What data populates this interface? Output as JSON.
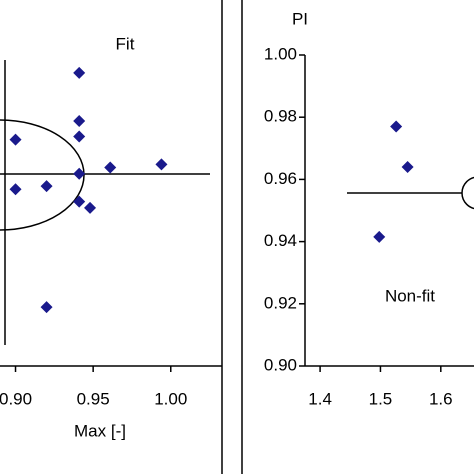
{
  "chart_data": [
    {
      "type": "scatter",
      "xlabel": "Max [-]",
      "annotation": "Fit",
      "color": "#1a1a8c",
      "x": [
        0.941,
        0.941,
        0.941,
        0.9,
        0.961,
        0.994,
        0.941,
        0.9,
        0.92,
        0.941,
        0.948,
        0.92
      ],
      "values": [
        0.9945,
        0.979,
        0.974,
        0.973,
        0.964,
        0.965,
        0.962,
        0.957,
        0.958,
        0.953,
        0.951,
        0.919
      ],
      "xlim": [
        0.89,
        1.033
      ],
      "ylim": [
        0.9,
        1.018
      ],
      "xticks": [
        {
          "value": 0.9,
          "label": "0.90"
        },
        {
          "value": 0.95,
          "label": "0.95"
        },
        {
          "value": 1.0,
          "label": "1.00"
        }
      ]
    },
    {
      "type": "scatter",
      "ylabel": "PI",
      "annotation": "Non-fit",
      "color": "#1a1a8c",
      "x": [
        1.498,
        1.526,
        1.545
      ],
      "values": [
        0.9415,
        0.977,
        0.964
      ],
      "xlim": [
        1.375,
        1.655
      ],
      "ylim": [
        0.9,
        1.0
      ],
      "xticks": [
        1.4,
        1.5,
        1.6
      ],
      "yticks": [
        {
          "value": 0.9,
          "label": "0.90"
        },
        {
          "value": 0.92,
          "label": "0.92"
        },
        {
          "value": 0.94,
          "label": "0.94"
        },
        {
          "value": 0.96,
          "label": "0.96"
        },
        {
          "value": 0.98,
          "label": "0.98"
        },
        {
          "value": 1.0,
          "label": "1.00"
        }
      ]
    }
  ]
}
